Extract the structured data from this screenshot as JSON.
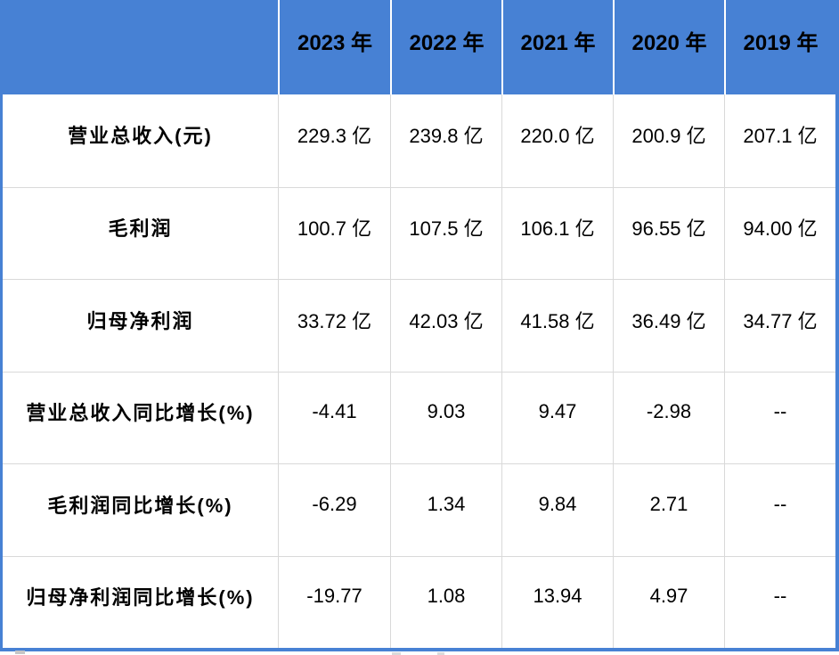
{
  "colors": {
    "header_bg": "#4781d4",
    "table_border": "#4781d4",
    "grid_line": "#d9d9d9",
    "header_divider": "#ffffff",
    "cell_bg": "#ffffff",
    "text": "#000000"
  },
  "table": {
    "header": {
      "corner": "",
      "years": [
        "2023 年",
        "2022 年",
        "2021 年",
        "2020 年",
        "2019 年"
      ]
    },
    "rows": [
      {
        "label": "营业总收入(元)",
        "values": [
          "229.3 亿",
          "239.8 亿",
          "220.0 亿",
          "200.9 亿",
          "207.1 亿"
        ]
      },
      {
        "label": "毛利润",
        "values": [
          "100.7 亿",
          "107.5 亿",
          "106.1 亿",
          "96.55 亿",
          "94.00 亿"
        ]
      },
      {
        "label": "归母净利润",
        "values": [
          "33.72 亿",
          "42.03 亿",
          "41.58 亿",
          "36.49 亿",
          "34.77 亿"
        ]
      },
      {
        "label": "营业总收入同比增长(%)",
        "values": [
          "-4.41",
          "9.03",
          "9.47",
          "-2.98",
          "--"
        ]
      },
      {
        "label": "毛利润同比增长(%)",
        "values": [
          "-6.29",
          "1.34",
          "9.84",
          "2.71",
          "--"
        ]
      },
      {
        "label": "归母净利润同比增长(%)",
        "values": [
          "-19.77",
          "1.08",
          "13.94",
          "4.97",
          "--"
        ]
      }
    ]
  },
  "chart_data": {
    "type": "table",
    "categories": [
      "2023 年",
      "2022 年",
      "2021 年",
      "2020 年",
      "2019 年"
    ],
    "series": [
      {
        "name": "营业总收入(元)",
        "unit": "亿",
        "values": [
          229.3,
          239.8,
          220.0,
          200.9,
          207.1
        ]
      },
      {
        "name": "毛利润",
        "unit": "亿",
        "values": [
          100.7,
          107.5,
          106.1,
          96.55,
          94.0
        ]
      },
      {
        "name": "归母净利润",
        "unit": "亿",
        "values": [
          33.72,
          42.03,
          41.58,
          36.49,
          34.77
        ]
      },
      {
        "name": "营业总收入同比增长(%)",
        "unit": "%",
        "values": [
          -4.41,
          9.03,
          9.47,
          -2.98,
          null
        ]
      },
      {
        "name": "毛利润同比增长(%)",
        "unit": "%",
        "values": [
          -6.29,
          1.34,
          9.84,
          2.71,
          null
        ]
      },
      {
        "name": "归母净利润同比增长(%)",
        "unit": "%",
        "values": [
          -19.77,
          1.08,
          13.94,
          4.97,
          null
        ]
      }
    ],
    "title": "",
    "legend": false,
    "grid": true
  }
}
